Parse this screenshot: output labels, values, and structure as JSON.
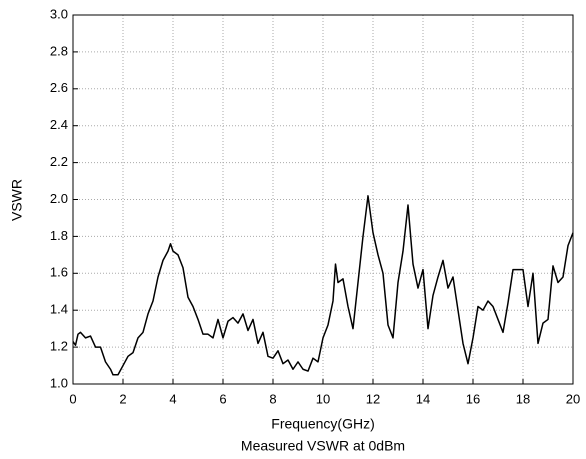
{
  "chart_data": {
    "type": "line",
    "xlabel": "Frequency(GHz)",
    "subtitle": "Measured VSWR at 0dBm",
    "ylabel": "VSWR",
    "x": [
      0,
      0.1,
      0.2,
      0.3,
      0.5,
      0.7,
      0.9,
      1.1,
      1.3,
      1.5,
      1.6,
      1.8,
      2.0,
      2.2,
      2.4,
      2.6,
      2.8,
      3.0,
      3.2,
      3.4,
      3.6,
      3.8,
      3.9,
      4.0,
      4.2,
      4.4,
      4.6,
      4.8,
      5.0,
      5.2,
      5.4,
      5.6,
      5.8,
      6.0,
      6.2,
      6.4,
      6.6,
      6.8,
      7.0,
      7.2,
      7.4,
      7.6,
      7.8,
      8.0,
      8.2,
      8.4,
      8.6,
      8.8,
      9.0,
      9.2,
      9.4,
      9.6,
      9.8,
      10.0,
      10.2,
      10.4,
      10.5,
      10.6,
      10.8,
      11.0,
      11.2,
      11.4,
      11.6,
      11.8,
      12.0,
      12.2,
      12.4,
      12.6,
      12.8,
      13.0,
      13.2,
      13.4,
      13.6,
      13.8,
      14.0,
      14.2,
      14.4,
      14.6,
      14.8,
      15.0,
      15.2,
      15.4,
      15.6,
      15.8,
      16.0,
      16.2,
      16.4,
      16.6,
      16.8,
      17.0,
      17.2,
      17.4,
      17.6,
      17.8,
      18.0,
      18.2,
      18.4,
      18.6,
      18.8,
      19.0,
      19.2,
      19.4,
      19.6,
      19.8,
      20.0
    ],
    "series": [
      {
        "color": "#000000",
        "values": [
          1.23,
          1.21,
          1.27,
          1.28,
          1.25,
          1.26,
          1.2,
          1.2,
          1.12,
          1.08,
          1.05,
          1.05,
          1.1,
          1.15,
          1.17,
          1.25,
          1.28,
          1.38,
          1.45,
          1.58,
          1.67,
          1.72,
          1.76,
          1.72,
          1.7,
          1.63,
          1.47,
          1.42,
          1.35,
          1.27,
          1.27,
          1.25,
          1.35,
          1.25,
          1.34,
          1.36,
          1.33,
          1.38,
          1.29,
          1.35,
          1.22,
          1.28,
          1.15,
          1.14,
          1.18,
          1.11,
          1.13,
          1.08,
          1.12,
          1.08,
          1.07,
          1.14,
          1.12,
          1.25,
          1.32,
          1.45,
          1.65,
          1.55,
          1.57,
          1.42,
          1.3,
          1.55,
          1.8,
          2.02,
          1.82,
          1.7,
          1.6,
          1.32,
          1.25,
          1.55,
          1.72,
          1.97,
          1.65,
          1.52,
          1.62,
          1.3,
          1.48,
          1.58,
          1.67,
          1.52,
          1.58,
          1.4,
          1.22,
          1.11,
          1.25,
          1.42,
          1.4,
          1.45,
          1.42,
          1.35,
          1.28,
          1.44,
          1.62,
          1.62,
          1.62,
          1.42,
          1.6,
          1.22,
          1.33,
          1.35,
          1.64,
          1.55,
          1.58,
          1.75,
          1.82
        ]
      }
    ],
    "xlim": [
      0,
      20
    ],
    "xticks": [
      0,
      2,
      4,
      6,
      8,
      10,
      12,
      14,
      16,
      18,
      20
    ],
    "ylim": [
      1,
      3
    ],
    "yticks": [
      {
        "value": 1,
        "label": "1.0"
      },
      1.2,
      1.4,
      1.6,
      1.8,
      {
        "value": 2,
        "label": "2.0"
      },
      2.2,
      2.4,
      2.6,
      2.8,
      {
        "value": 3,
        "label": "3.0"
      }
    ],
    "grid": true
  }
}
